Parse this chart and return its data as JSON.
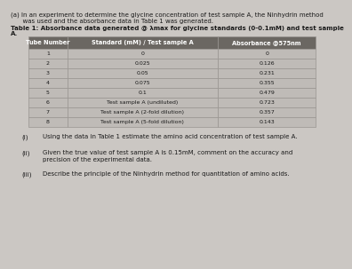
{
  "title_line1": "(a) In an experiment to determine the glycine concentration of test sample A, the Ninhydrin method",
  "title_line2": "      was used and the absorbance data in Table 1 was generated.",
  "table_title_line1": "Table 1: Absorbance data generated @ λmax for glycine standards (0-0.1mM) and test sample",
  "table_title_line2": "A.",
  "col_headers": [
    "Tube Number",
    "Standard (mM) / Test sample A",
    "Absorbance @575nm"
  ],
  "rows": [
    [
      "1",
      "0",
      "0"
    ],
    [
      "2",
      "0.025",
      "0.126"
    ],
    [
      "3",
      "0.05",
      "0.231"
    ],
    [
      "4",
      "0.075",
      "0.355"
    ],
    [
      "5",
      "0.1",
      "0.479"
    ],
    [
      "6",
      "Test sample A (undiluted)",
      "0.723"
    ],
    [
      "7",
      "Test sample A (2-fold dilution)",
      "0.357"
    ],
    [
      "8",
      "Test sample A (5-fold dilution)",
      "0.143"
    ]
  ],
  "q1_label": "(i)",
  "q1_text": "Using the data in Table 1 estimate the amino acid concentration of test sample A.",
  "q2_label": "(ii)",
  "q2_text_line1": "Given the true value of test sample A is 0.15mM, comment on the accuracy and",
  "q2_text_line2": "precision of the experimental data.",
  "q3_label": "(iii)",
  "q3_text": "Describe the principle of the Ninhydrin method for quantitation of amino acids.",
  "bg_color": "#cbc7c3",
  "table_header_bg": "#6b6762",
  "table_header_fg": "#ffffff",
  "table_row_bg1": "#bfbbb7",
  "table_row_bg2": "#bfbbb7",
  "table_border_color": "#999591",
  "text_color": "#1a1a1a",
  "fs_body": 5.0,
  "fs_table_hdr": 4.8,
  "fs_table_cell": 4.5
}
